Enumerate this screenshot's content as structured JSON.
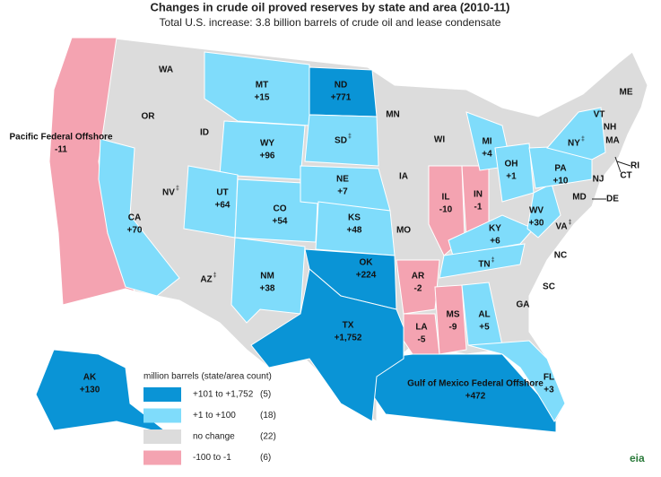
{
  "title": "Changes in crude oil proved reserves by state and area (2010-11)",
  "subtitle": "Total U.S. increase:  3.8 billion barrels of crude oil and lease condensate",
  "regions": [
    {
      "label": "Pacific Federal Offshore",
      "value": "-11",
      "color": "#f4a3b1"
    },
    {
      "label": "AK",
      "value": "+130",
      "color": "#0a94d6"
    },
    {
      "label": "WA"
    },
    {
      "label": "OR"
    },
    {
      "label": "CA",
      "value": "+70",
      "color": "#7fdcfb"
    },
    {
      "label": "ID"
    },
    {
      "label": "NV",
      "note": "‡"
    },
    {
      "label": "MT",
      "value": "+15",
      "color": "#7fdcfb"
    },
    {
      "label": "WY",
      "value": "+96",
      "color": "#7fdcfb"
    },
    {
      "label": "UT",
      "value": "+64",
      "color": "#7fdcfb"
    },
    {
      "label": "AZ",
      "note": "‡"
    },
    {
      "label": "CO",
      "value": "+54",
      "color": "#7fdcfb"
    },
    {
      "label": "NM",
      "value": "+38",
      "color": "#7fdcfb"
    },
    {
      "label": "ND",
      "value": "+771",
      "color": "#0a94d6"
    },
    {
      "label": "SD",
      "note": "‡",
      "color": "#7fdcfb"
    },
    {
      "label": "NE",
      "value": "+7",
      "color": "#7fdcfb"
    },
    {
      "label": "KS",
      "value": "+48",
      "color": "#7fdcfb"
    },
    {
      "label": "OK",
      "value": "+224",
      "color": "#0a94d6"
    },
    {
      "label": "TX",
      "value": "+1,752",
      "color": "#0a94d6"
    },
    {
      "label": "MN"
    },
    {
      "label": "IA"
    },
    {
      "label": "MO"
    },
    {
      "label": "WI"
    },
    {
      "label": "IL",
      "value": "-10",
      "color": "#f4a3b1"
    },
    {
      "label": "IN",
      "value": "-1",
      "color": "#f4a3b1"
    },
    {
      "label": "AR",
      "value": "-2",
      "color": "#f4a3b1"
    },
    {
      "label": "LA",
      "value": "-5",
      "color": "#f4a3b1"
    },
    {
      "label": "MS",
      "value": "-9",
      "color": "#f4a3b1"
    },
    {
      "label": "AL",
      "value": "+5",
      "color": "#7fdcfb"
    },
    {
      "label": "MI",
      "value": "+4",
      "color": "#7fdcfb"
    },
    {
      "label": "OH",
      "value": "+1",
      "color": "#7fdcfb"
    },
    {
      "label": "KY",
      "value": "+6",
      "color": "#7fdcfb"
    },
    {
      "label": "TN",
      "note": "‡",
      "color": "#7fdcfb"
    },
    {
      "label": "WV",
      "value": "+30",
      "color": "#7fdcfb"
    },
    {
      "label": "VA",
      "note": "‡"
    },
    {
      "label": "PA",
      "value": "+10",
      "color": "#7fdcfb"
    },
    {
      "label": "NY",
      "note": "‡",
      "color": "#7fdcfb"
    },
    {
      "label": "NC"
    },
    {
      "label": "SC"
    },
    {
      "label": "GA"
    },
    {
      "label": "FL",
      "value": "+3",
      "color": "#7fdcfb"
    },
    {
      "label": "Gulf of Mexico Federal Offshore",
      "value": "+472",
      "color": "#0a94d6"
    },
    {
      "label": "MD"
    },
    {
      "label": "DE"
    },
    {
      "label": "NJ"
    },
    {
      "label": "CT"
    },
    {
      "label": "RI"
    },
    {
      "label": "MA"
    },
    {
      "label": "NH"
    },
    {
      "label": "VT"
    },
    {
      "label": "ME"
    }
  ],
  "legend": {
    "title": "million barrels (state/area count)",
    "items": [
      {
        "label": "+101 to +1,752",
        "count": "(5)",
        "color": "#0a94d6"
      },
      {
        "label": "+1 to +100",
        "count": "(18)",
        "color": "#7fdcfb"
      },
      {
        "label": "no change",
        "count": "(22)",
        "color": "#dcdcdc"
      },
      {
        "label": "-100 to -1",
        "count": "(6)",
        "color": "#f4a3b1"
      }
    ]
  },
  "logo": "eia"
}
